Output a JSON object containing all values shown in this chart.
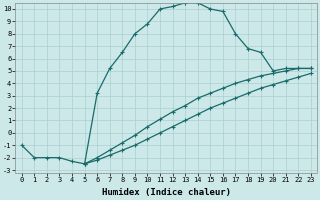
{
  "xlabel": "Humidex (Indice chaleur)",
  "ylabel": "",
  "xlim": [
    -0.5,
    23.5
  ],
  "ylim": [
    -3.2,
    10.5
  ],
  "xticks": [
    0,
    1,
    2,
    3,
    4,
    5,
    6,
    7,
    8,
    9,
    10,
    11,
    12,
    13,
    14,
    15,
    16,
    17,
    18,
    19,
    20,
    21,
    22,
    23
  ],
  "yticks": [
    -3,
    -2,
    -1,
    0,
    1,
    2,
    3,
    4,
    5,
    6,
    7,
    8,
    9,
    10
  ],
  "bg_color": "#cce8e8",
  "line_color": "#1a6b6b",
  "grid_color": "#aacfcf",
  "line1_x": [
    0,
    1,
    2,
    3,
    4,
    5,
    6,
    7,
    8,
    9,
    10,
    11,
    12,
    13,
    14,
    15,
    16,
    17,
    18,
    19,
    20,
    21,
    22,
    23
  ],
  "line1_y": [
    -1.0,
    -2.0,
    -2.0,
    -2.0,
    -2.3,
    -2.5,
    3.2,
    5.2,
    6.5,
    8.0,
    8.8,
    10.0,
    10.2,
    10.5,
    10.5,
    10.0,
    9.8,
    8.0,
    6.8,
    6.5,
    5.0,
    5.2,
    5.2,
    5.2
  ],
  "line2_x": [
    5,
    6,
    7,
    8,
    9,
    10,
    11,
    12,
    13,
    14,
    15,
    16,
    17,
    18,
    19,
    20,
    21,
    22,
    23
  ],
  "line2_y": [
    -2.5,
    -2.0,
    -1.4,
    -0.8,
    -0.2,
    0.5,
    1.1,
    1.7,
    2.2,
    2.8,
    3.2,
    3.6,
    4.0,
    4.3,
    4.6,
    4.8,
    5.0,
    5.2,
    5.2
  ],
  "line3_x": [
    5,
    6,
    7,
    8,
    9,
    10,
    11,
    12,
    13,
    14,
    15,
    16,
    17,
    18,
    19,
    20,
    21,
    22,
    23
  ],
  "line3_y": [
    -2.5,
    -2.2,
    -1.8,
    -1.4,
    -1.0,
    -0.5,
    0.0,
    0.5,
    1.0,
    1.5,
    2.0,
    2.4,
    2.8,
    3.2,
    3.6,
    3.9,
    4.2,
    4.5,
    4.8
  ],
  "marker": "+",
  "markersize": 3,
  "linewidth": 0.9,
  "tick_fontsize": 5,
  "label_fontsize": 6.5
}
